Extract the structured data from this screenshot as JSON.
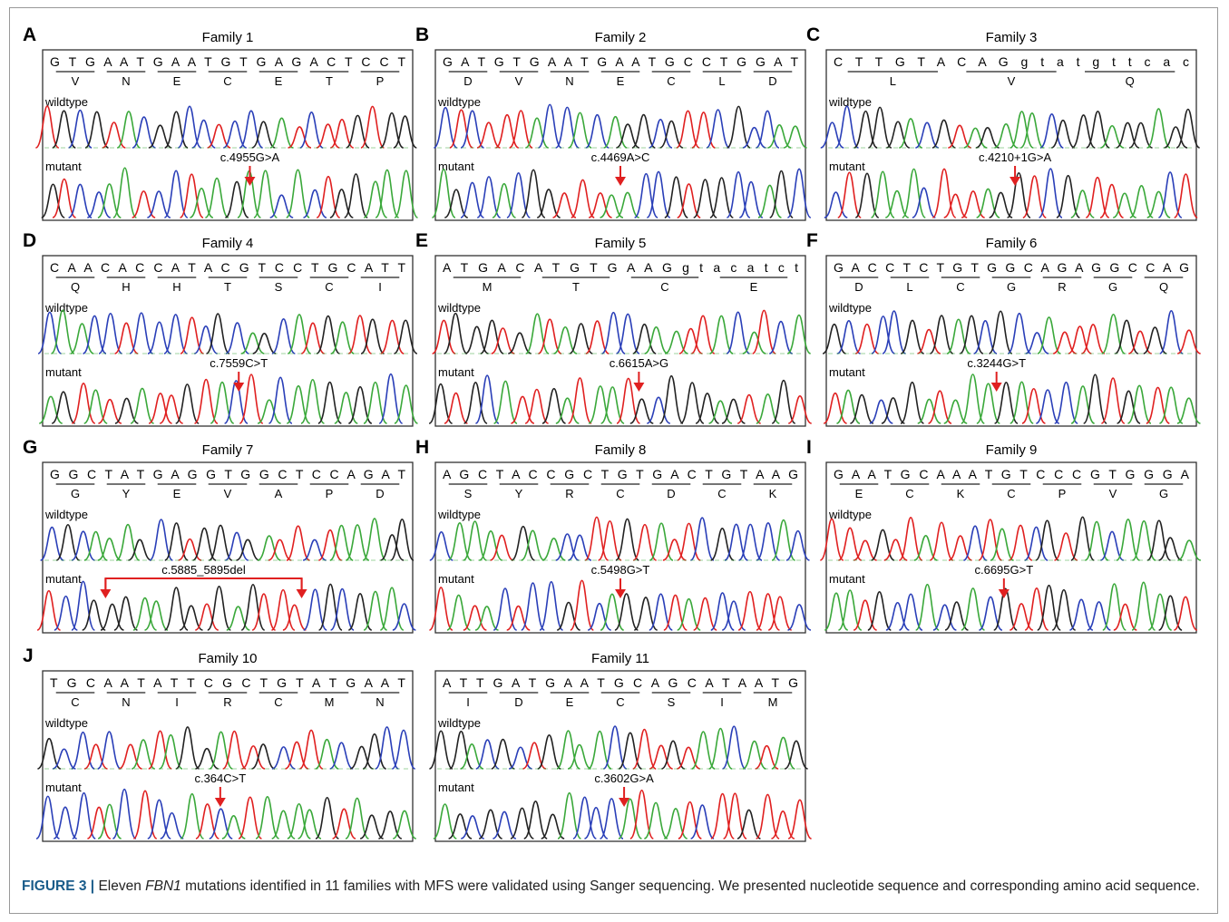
{
  "panels": [
    {
      "letter": "A",
      "title": "Family 1",
      "nucleotides": "G T G   A A T   G A A   T G T   G A G   A C T   C C T",
      "amino_acids": [
        "V",
        "N",
        "E",
        "C",
        "E",
        "T",
        "P"
      ],
      "wildtype": "wildtype",
      "mutant": "mutant",
      "mutation": "c.4955G>A"
    },
    {
      "letter": "B",
      "title": "Family 2",
      "nucleotides": "G A T   G T G   A A T   G A A   T G C   C T G   G A T",
      "amino_acids": [
        "D",
        "V",
        "N",
        "E",
        "C",
        "L",
        "D"
      ],
      "wildtype": "wildtype",
      "mutant": "mutant",
      "mutation": "c.4469A>C"
    },
    {
      "letter": "C",
      "title": "Family 3",
      "nucleotides": "C T T   G T A   C A G   g t a t g t t c a c",
      "amino_acids": [
        "L",
        "V",
        "Q"
      ],
      "wildtype": "wildtype",
      "mutant": "mutant",
      "mutation": "c.4210+1G>A"
    },
    {
      "letter": "D",
      "title": "Family 4",
      "nucleotides": "C A A  C A C  C A T  A C G T  C C T G C  A T T",
      "amino_acids": [
        "Q",
        "H",
        "H",
        "T",
        "S",
        "C",
        "I"
      ],
      "wildtype": "wildtype",
      "mutant": "mutant",
      "mutation": "c.7559C>T"
    },
    {
      "letter": "E",
      "title": "Family 5",
      "nucleotides": "A T G  A C A T G T G A A G g t a c a t c t",
      "amino_acids": [
        "M",
        "T",
        "C",
        "E"
      ],
      "wildtype": "wildtype",
      "mutant": "mutant",
      "mutation": "c.6615A>G"
    },
    {
      "letter": "F",
      "title": "Family 6",
      "nucleotides": "G A C C T  C T G T G G C A G A  G G C C A G",
      "amino_acids": [
        "D",
        "L",
        "C",
        "G",
        "R",
        "G",
        "Q"
      ],
      "wildtype": "wildtype",
      "mutant": "mutant",
      "mutation": "c.3244G>T"
    },
    {
      "letter": "G",
      "title": "Family 7",
      "nucleotides": "G G C T A T G A G G T G G C T C C A G A T",
      "amino_acids": [
        "G",
        "Y",
        "E",
        "V",
        "A",
        "P",
        "D"
      ],
      "wildtype": "wildtype",
      "mutant": "mutant",
      "mutation": "c.5885_5895del"
    },
    {
      "letter": "H",
      "title": "Family 8",
      "nucleotides": "A G C  T A C C G C  T G T  G A C T G T A A G",
      "amino_acids": [
        "S",
        "Y",
        "R",
        "C",
        "D",
        "C",
        "K"
      ],
      "wildtype": "wildtype",
      "mutant": "mutant",
      "mutation": "c.5498G>T"
    },
    {
      "letter": "I",
      "title": "Family 9",
      "nucleotides": "G A A T G C A A A T G T C C C G T G G G A",
      "amino_acids": [
        "E",
        "C",
        "K",
        "C",
        "P",
        "V",
        "G"
      ],
      "wildtype": "wildtype",
      "mutant": "mutant",
      "mutation": "c.6695G>T"
    },
    {
      "letter": "J",
      "title": "Family 10",
      "nucleotides": "T G C A A T A T T C G C T G T A T G A A T",
      "amino_acids": [
        "C",
        "N",
        "I",
        "R",
        "C",
        "M",
        "N"
      ],
      "wildtype": "wildtype",
      "mutant": "mutant",
      "mutation": "c.364C>T"
    },
    {
      "title": "Family 11",
      "nucleotides": "A T T G A T G A A T G C A G C A T A A T G",
      "amino_acids": [
        "I",
        "D",
        "E",
        "C",
        "S",
        "I",
        "M"
      ],
      "wildtype": "wildtype",
      "mutant": "mutant",
      "mutation": "c.3602G>A"
    }
  ],
  "caption": {
    "label": "FIGURE 3 |",
    "text_before": "Eleven",
    "gene": "FBN1",
    "text_after": "mutations identified in 11 families with MFS were validated using Sanger sequencing. We presented nucleotide sequence and corresponding amino acid sequence."
  }
}
